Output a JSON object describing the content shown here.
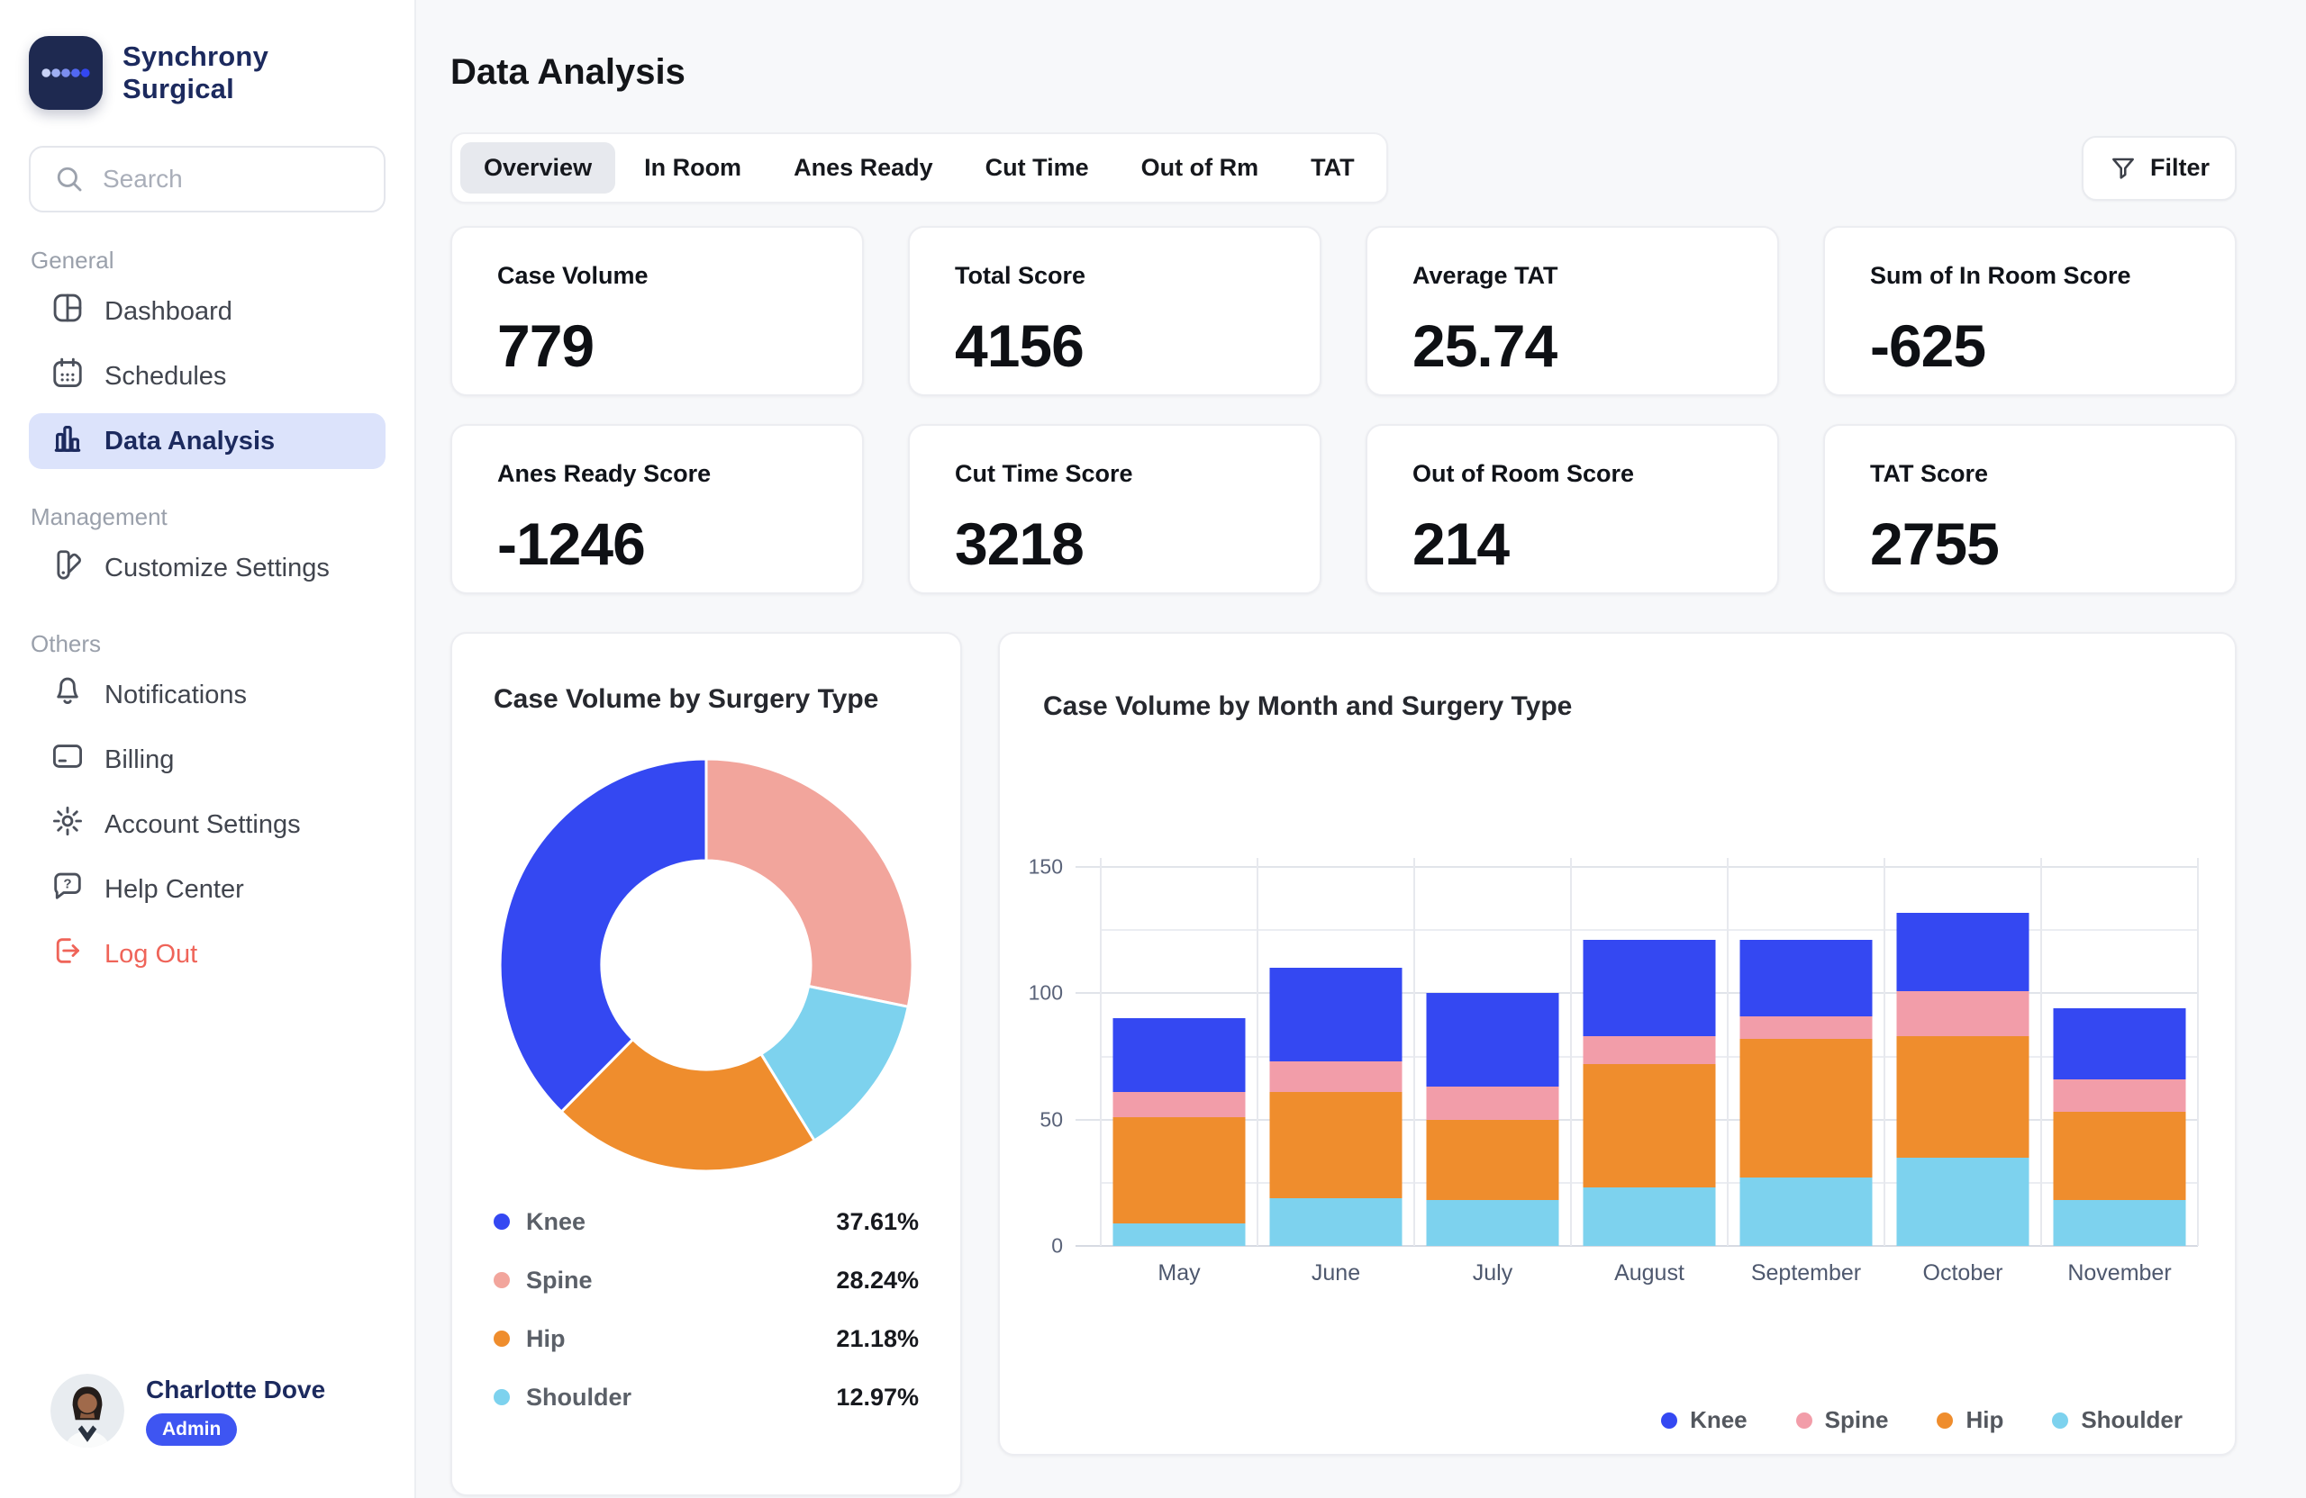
{
  "brand": {
    "name": "Synchrony Surgical",
    "logo_bg": "#1E2950",
    "logo_dot_colors": [
      "#C9D3F7",
      "#9FAFF3",
      "#7C8EEF",
      "#5268F2",
      "#3347F0"
    ]
  },
  "search": {
    "placeholder": "Search"
  },
  "sidebar": {
    "sections": [
      {
        "label": "General",
        "items": [
          {
            "label": "Dashboard",
            "icon": "dashboard-icon",
            "active": false
          },
          {
            "label": "Schedules",
            "icon": "calendar-icon",
            "active": false
          },
          {
            "label": "Data Analysis",
            "icon": "bar-chart-icon",
            "active": true
          }
        ]
      },
      {
        "label": "Management",
        "items": [
          {
            "label": "Customize Settings",
            "icon": "customize-icon",
            "active": false
          }
        ]
      },
      {
        "label": "Others",
        "items": [
          {
            "label": "Notifications",
            "icon": "bell-icon",
            "active": false
          },
          {
            "label": "Billing",
            "icon": "credit-card-icon",
            "active": false
          },
          {
            "label": "Account Settings",
            "icon": "gear-icon",
            "active": false
          },
          {
            "label": "Help Center",
            "icon": "help-icon",
            "active": false
          },
          {
            "label": "Log Out",
            "icon": "logout-icon",
            "active": false,
            "danger": true
          }
        ]
      }
    ]
  },
  "user": {
    "name": "Charlotte Dove",
    "role": "Admin"
  },
  "header": {
    "title": "Data Analysis"
  },
  "tabs": [
    {
      "label": "Overview",
      "active": true
    },
    {
      "label": "In Room",
      "active": false
    },
    {
      "label": "Anes Ready",
      "active": false
    },
    {
      "label": "Cut Time",
      "active": false
    },
    {
      "label": "Out of Rm",
      "active": false
    },
    {
      "label": "TAT",
      "active": false
    }
  ],
  "filter": {
    "label": "Filter"
  },
  "stats": [
    {
      "label": "Case Volume",
      "value": "779"
    },
    {
      "label": "Total Score",
      "value": "4156"
    },
    {
      "label": "Average TAT",
      "value": "25.74"
    },
    {
      "label": "Sum of In Room Score",
      "value": "-625"
    },
    {
      "label": "Anes Ready Score",
      "value": "-1246"
    },
    {
      "label": "Cut Time Score",
      "value": "3218"
    },
    {
      "label": "Out of Room Score",
      "value": "214"
    },
    {
      "label": "TAT Score",
      "value": "2755"
    }
  ],
  "colors": {
    "knee": "#3448F2",
    "spine": "#F2A59C",
    "spine_bar": "#F29DA9",
    "hip": "#EF8D2D",
    "shoulder": "#7DD2EE",
    "accent": "#3E55F2",
    "danger": "#EF6459"
  },
  "chart_data": [
    {
      "type": "pie",
      "donut": true,
      "title": "Case Volume by Surgery Type",
      "slices_clockwise_from_top": [
        {
          "label": "Spine",
          "pct": 28.24,
          "color": "#F2A59C"
        },
        {
          "label": "Shoulder",
          "pct": 12.97,
          "color": "#7DD2EE"
        },
        {
          "label": "Hip",
          "pct": 21.18,
          "color": "#EF8D2D"
        },
        {
          "label": "Knee",
          "pct": 37.61,
          "color": "#3448F2"
        }
      ],
      "legend": [
        {
          "label": "Knee",
          "value": "37.61%",
          "color": "#3448F2"
        },
        {
          "label": "Spine",
          "value": "28.24%",
          "color": "#F2A59C"
        },
        {
          "label": "Hip",
          "value": "21.18%",
          "color": "#EF8D2D"
        },
        {
          "label": "Shoulder",
          "value": "12.97%",
          "color": "#7DD2EE"
        }
      ],
      "legend_position": "bottom"
    },
    {
      "type": "bar",
      "stacked": true,
      "title": "Case Volume by Month and Surgery Type",
      "categories": [
        "May",
        "June",
        "July",
        "August",
        "September",
        "October",
        "November"
      ],
      "series": [
        {
          "name": "Shoulder",
          "color": "#7DD2EE",
          "values": [
            9,
            19,
            18,
            23,
            27,
            35,
            18
          ]
        },
        {
          "name": "Hip",
          "color": "#EF8D2D",
          "values": [
            42,
            42,
            32,
            49,
            55,
            48,
            35
          ]
        },
        {
          "name": "Spine",
          "color": "#F29DA9",
          "values": [
            10,
            12,
            13,
            11,
            9,
            18,
            13
          ]
        },
        {
          "name": "Knee",
          "color": "#3448F2",
          "values": [
            29,
            37,
            37,
            38,
            30,
            31,
            28
          ]
        }
      ],
      "stack_order_bottom_to_top": [
        "Shoulder",
        "Hip",
        "Spine",
        "Knee"
      ],
      "totals": [
        90,
        110,
        100,
        121,
        121,
        132,
        94
      ],
      "ylim": [
        0,
        150
      ],
      "yticks": [
        0,
        50,
        100,
        150
      ],
      "grid_minor_every": 25,
      "grid": true,
      "xlabel": "",
      "ylabel": "",
      "legend_order": [
        "Knee",
        "Spine",
        "Hip",
        "Shoulder"
      ],
      "legend_position": "bottom-right"
    }
  ]
}
